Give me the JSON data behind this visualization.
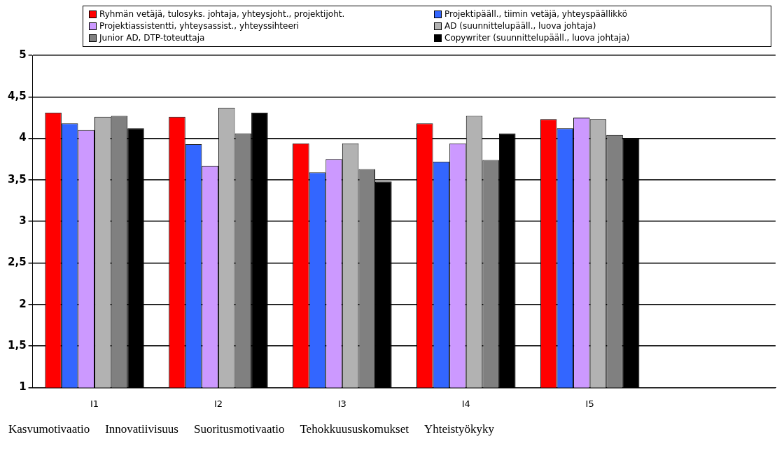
{
  "chart_data": {
    "type": "bar",
    "categories": [
      "I1",
      "I2",
      "I3",
      "I4",
      "I5",
      null
    ],
    "series": [
      {
        "name": "Ryhmän vetäjä, tulosyks. johtaja, yhteysjoht., projektijoht.",
        "color": "#ff0000",
        "values": [
          4.31,
          4.26,
          3.94,
          4.18,
          4.23,
          null
        ]
      },
      {
        "name": "Projektipääll., tiimin vetäjä, yhteyspäällikkö",
        "color": "#3366ff",
        "values": [
          4.18,
          3.93,
          3.59,
          3.72,
          4.12,
          null
        ]
      },
      {
        "name": "Projektiassistentti, yhteysassist., yhteyssihteeri",
        "color": "#cc99ff",
        "values": [
          4.1,
          3.67,
          3.75,
          3.94,
          4.25,
          null
        ]
      },
      {
        "name": "AD (suunnittelupääll., luova johtaja)",
        "color": "#b2b2b2",
        "values": [
          4.26,
          4.37,
          3.94,
          4.27,
          4.23,
          null
        ]
      },
      {
        "name": "Junior AD, DTP-toteuttaja",
        "color": "#808080",
        "values": [
          4.27,
          4.06,
          3.63,
          3.74,
          4.04,
          null
        ]
      },
      {
        "name": "Copywriter (suunnittelupääll., luova johtaja)",
        "color": "#000000",
        "values": [
          4.12,
          4.31,
          3.48,
          4.06,
          4.0,
          null
        ]
      }
    ],
    "ylim": [
      1,
      5
    ],
    "yticks": [
      1,
      {
        "value": 1.5,
        "label": "1,5"
      },
      2,
      {
        "value": 2.5,
        "label": "2,5"
      },
      3,
      {
        "value": 3.5,
        "label": "3,5"
      },
      4,
      {
        "value": 4.5,
        "label": "4,5"
      },
      5
    ],
    "grid": "y",
    "legend": "top",
    "annotations": [
      "Kasvumotivaatio",
      "Innovatiivisuus",
      "Suoritusmotivaatio",
      "Tehokkuususkomukset",
      "Yhteistyökyky"
    ]
  }
}
